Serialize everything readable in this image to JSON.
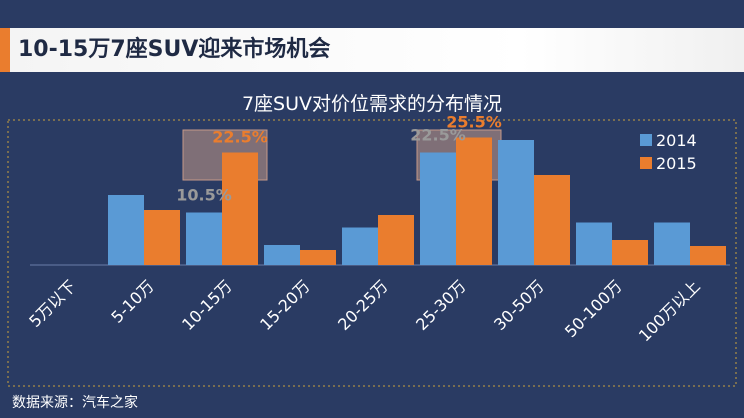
{
  "header": {
    "title": "10-15万7座SUV迎来市场机会"
  },
  "footer": {
    "source": "数据来源：汽车之家"
  },
  "colors": {
    "series_2014": "#5a9ad5",
    "series_2015": "#ea7d2e",
    "highlight_box": "#c59a89",
    "highlight_label_2015": "#ea7d2e",
    "highlight_label_2014": "#9a9a9a"
  },
  "chart_data": {
    "type": "bar",
    "title": "7座SUV对价位需求的分布情况",
    "xlabel": "",
    "ylabel": "",
    "categories": [
      "5万以下",
      "5-10万",
      "10-15万",
      "15-20万",
      "20-25万",
      "25-30万",
      "30-50万",
      "50-100万",
      "100万以上"
    ],
    "series": [
      {
        "name": "2014",
        "values": [
          0,
          14,
          10.5,
          4,
          7.5,
          22.5,
          25,
          8.5,
          8.5
        ]
      },
      {
        "name": "2015",
        "values": [
          0,
          11,
          22.5,
          3,
          10,
          25.5,
          18,
          5,
          3.8
        ]
      }
    ],
    "ylim": [
      0,
      30
    ],
    "grid": false,
    "legend": "top-right",
    "data_labels": [
      {
        "category": "10-15万",
        "series": "2014",
        "text": "10.5%"
      },
      {
        "category": "10-15万",
        "series": "2015",
        "text": "22.5%"
      },
      {
        "category": "25-30万",
        "series": "2014",
        "text": "22.5%"
      },
      {
        "category": "25-30万",
        "series": "2015",
        "text": "25.5%"
      }
    ],
    "highlighted_categories": [
      "10-15万",
      "25-30万"
    ]
  }
}
